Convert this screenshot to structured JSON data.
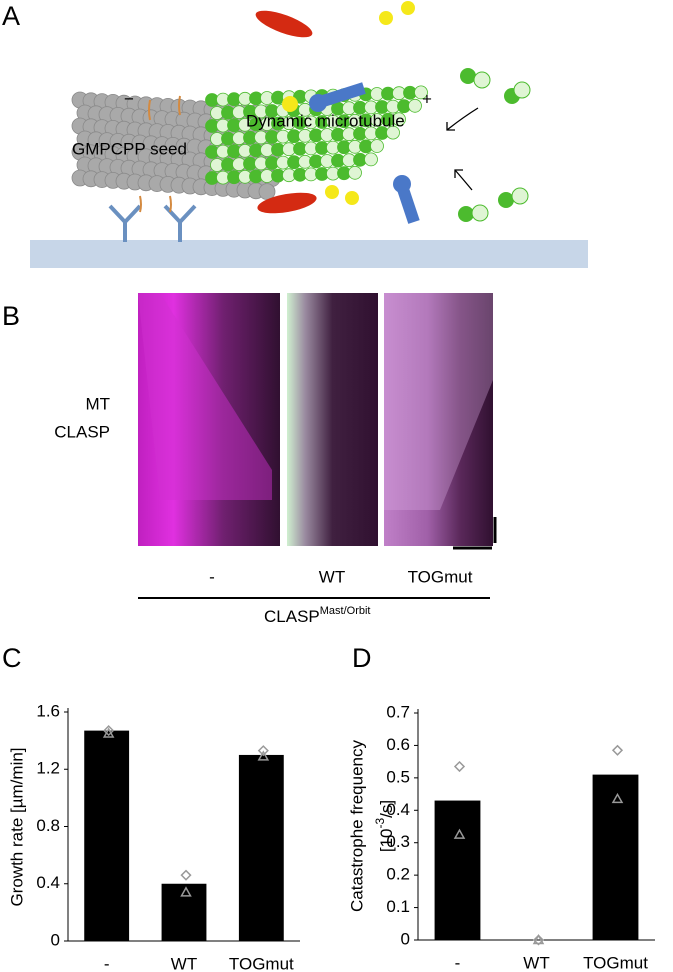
{
  "panels": [
    "A",
    "B",
    "C",
    "D"
  ],
  "diagram": {
    "minus": "−",
    "plus": "+",
    "seed_label": "GMPCPP seed",
    "mt_label": "Dynamic microtubule"
  },
  "kymograph": {
    "channels": [
      "MT",
      "CLASP"
    ],
    "channel_colors": [
      "#e020e0",
      "#90f070"
    ],
    "conditions": [
      "-",
      "WT",
      "TOGmut"
    ],
    "group_label": "CLASP",
    "group_superscript": "Mast/Orbit"
  },
  "chart_data": [
    {
      "type": "bar",
      "ylabel": "Growth rate [µm/min]",
      "categories": [
        "-",
        "WT",
        "TOGmut"
      ],
      "values": [
        1.47,
        0.4,
        1.3
      ],
      "color": "#000000",
      "markers": [
        {
          "shape": "diamond",
          "values": [
            1.47,
            0.46,
            1.33
          ]
        },
        {
          "shape": "triangle",
          "values": [
            1.45,
            0.34,
            1.29
          ]
        }
      ],
      "marker_color": "#999999",
      "ylim": [
        0,
        1.6
      ],
      "yticks": [
        0,
        0.4,
        0.8,
        1.2,
        1.6
      ]
    },
    {
      "type": "bar",
      "ylabel": {
        "line1": "Catastrophe frequency",
        "unit_prefix": "[10",
        "unit_exp": "-3",
        "unit_suffix": "/s]"
      },
      "categories": [
        "-",
        "WT",
        "TOGmut"
      ],
      "values": [
        0.43,
        0,
        0.51
      ],
      "color": "#000000",
      "markers": [
        {
          "shape": "diamond",
          "values": [
            0.535,
            0,
            0.585
          ]
        },
        {
          "shape": "triangle",
          "values": [
            0.325,
            0,
            0.435
          ]
        }
      ],
      "marker_color": "#999999",
      "ylim": [
        0,
        0.7
      ],
      "yticks": [
        0,
        0.1,
        0.2,
        0.3,
        0.4,
        0.5,
        0.6,
        0.7
      ]
    }
  ]
}
